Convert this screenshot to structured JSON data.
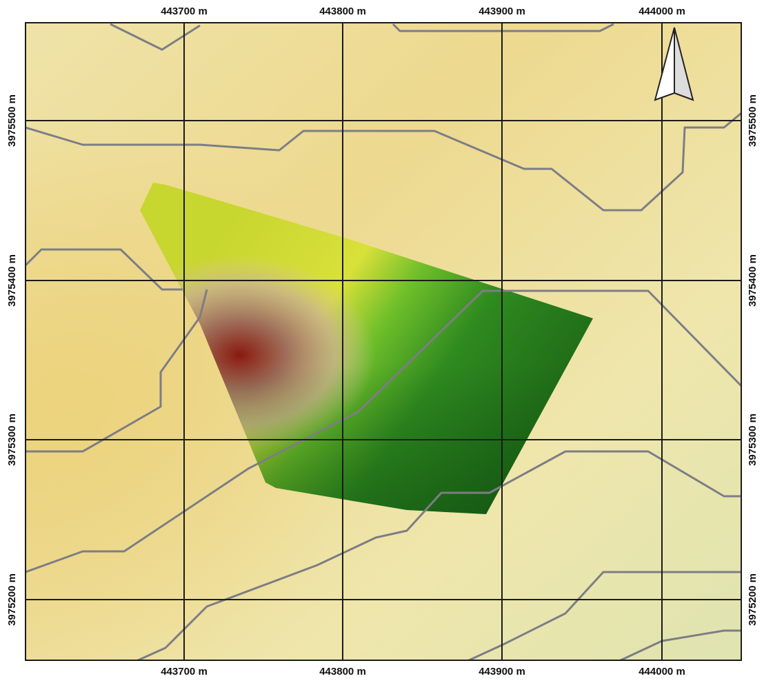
{
  "grid": {
    "x_labels": [
      "443700 m",
      "443800 m",
      "443900 m",
      "444000 m"
    ],
    "y_labels": [
      "3975500 m",
      "3975400 m",
      "3975300 m",
      "3975200 m"
    ]
  }
}
